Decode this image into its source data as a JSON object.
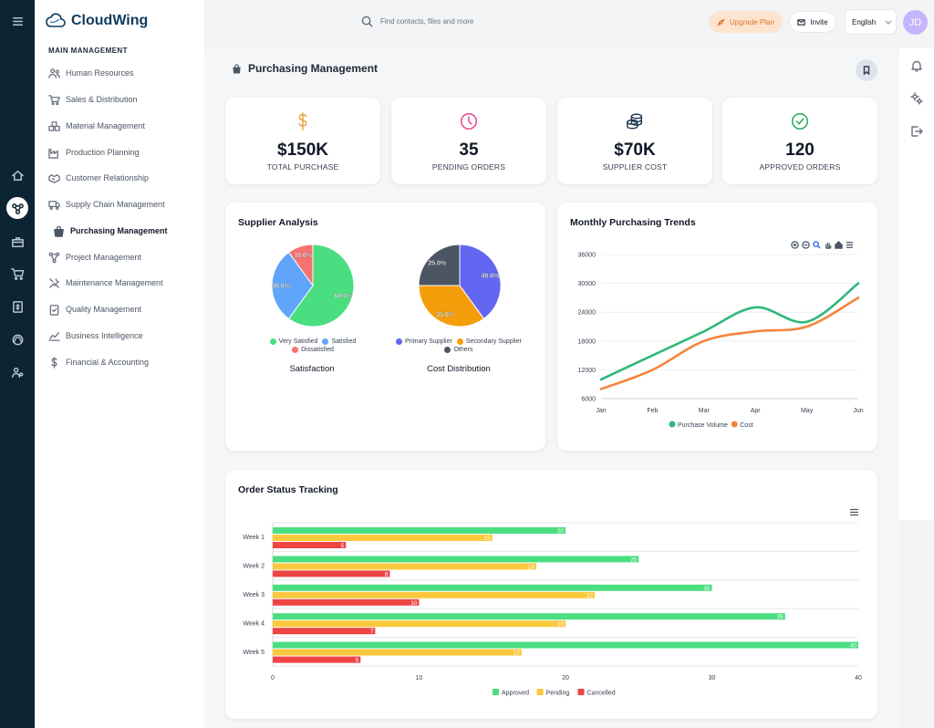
{
  "app": {
    "name": "CloudWing"
  },
  "search": {
    "placeholder": "Find contacts, files and more"
  },
  "header": {
    "upgrade_label": "Upgrade Plan",
    "invite_label": "Invite",
    "language": "English",
    "avatar_initials": "JD"
  },
  "sidebar": {
    "section_title": "MAIN MANAGEMENT",
    "items": [
      {
        "label": "Human Resources",
        "icon": "users-icon"
      },
      {
        "label": "Sales & Distribution",
        "icon": "cart-icon"
      },
      {
        "label": "Material Management",
        "icon": "boxes-icon"
      },
      {
        "label": "Production Planning",
        "icon": "factory-icon"
      },
      {
        "label": "Customer Relationship",
        "icon": "handshake-icon"
      },
      {
        "label": "Supply Chain Management",
        "icon": "truck-icon"
      },
      {
        "label": "Purchasing Management",
        "icon": "bag-icon",
        "active": true
      },
      {
        "label": "Project Management",
        "icon": "project-icon"
      },
      {
        "label": "Maintenance Management",
        "icon": "tools-icon"
      },
      {
        "label": "Quality Management",
        "icon": "clipboard-check-icon"
      },
      {
        "label": "Business Intelligence",
        "icon": "chart-line-icon"
      },
      {
        "label": "Financial & Accounting",
        "icon": "dollar-icon"
      }
    ]
  },
  "page": {
    "title": "Purchasing Management"
  },
  "stats": [
    {
      "value": "$150K",
      "label": "TOTAL PURCHASE",
      "icon": "dollar-icon",
      "color": "#e8a33d"
    },
    {
      "value": "35",
      "label": "PENDING ORDERS",
      "icon": "clock-icon",
      "color": "#e83e8c"
    },
    {
      "value": "$70K",
      "label": "SUPPLIER COST",
      "icon": "coins-icon",
      "color": "#1f3b57"
    },
    {
      "value": "120",
      "label": "APPROVED ORDERS",
      "icon": "check-circle-icon",
      "color": "#22a55a"
    }
  ],
  "supplier_analysis": {
    "title": "Supplier Analysis",
    "satisfaction_caption": "Satisfaction",
    "cost_caption": "Cost Distribution"
  },
  "trends": {
    "title": "Monthly Purchasing Trends"
  },
  "orders": {
    "title": "Order Status Tracking"
  },
  "chart_data": [
    {
      "type": "pie",
      "title": "Satisfaction",
      "categories": [
        "Very Satisfied",
        "Satisfied",
        "Dissatisfied"
      ],
      "values": [
        60,
        30,
        10
      ],
      "labels": [
        "60.0%",
        "30.0%",
        "10.0%"
      ],
      "colors": [
        "#4ade80",
        "#60a5fa",
        "#f87171"
      ]
    },
    {
      "type": "pie",
      "title": "Cost Distribution",
      "categories": [
        "Primary Supplier",
        "Secondary Supplier",
        "Others"
      ],
      "values": [
        40,
        35,
        25
      ],
      "labels": [
        "40.0%",
        "35.0%",
        "25.0%"
      ],
      "colors": [
        "#6366f1",
        "#f59e0b",
        "#4b5563"
      ]
    },
    {
      "type": "line",
      "title": "Monthly Purchasing Trends",
      "x": [
        "Jan",
        "Feb",
        "Mar",
        "Apr",
        "May",
        "Jun"
      ],
      "ylim": [
        6000,
        36000
      ],
      "yticks": [
        6000,
        12000,
        18000,
        24000,
        30000,
        36000
      ],
      "series": [
        {
          "name": "Purchase Volume",
          "values": [
            10000,
            15000,
            20000,
            25000,
            22000,
            30000
          ],
          "color": "#2fb87a"
        },
        {
          "name": "Cost",
          "values": [
            8000,
            12000,
            18000,
            20000,
            21000,
            27000
          ],
          "color": "#f5843b"
        }
      ]
    },
    {
      "type": "bar",
      "orientation": "horizontal",
      "title": "Order Status Tracking",
      "categories": [
        "Week 1",
        "Week 2",
        "Week 3",
        "Week 4",
        "Week 5"
      ],
      "xlim": [
        0,
        40
      ],
      "xticks": [
        0,
        10,
        20,
        30,
        40
      ],
      "series": [
        {
          "name": "Approved",
          "values": [
            20,
            25,
            30,
            35,
            40
          ],
          "color": "#4ade80"
        },
        {
          "name": "Pending",
          "values": [
            15,
            18,
            22,
            20,
            17
          ],
          "color": "#fcc83c"
        },
        {
          "name": "Cancelled",
          "values": [
            5,
            8,
            10,
            7,
            6
          ],
          "color": "#ef4444"
        }
      ]
    }
  ]
}
